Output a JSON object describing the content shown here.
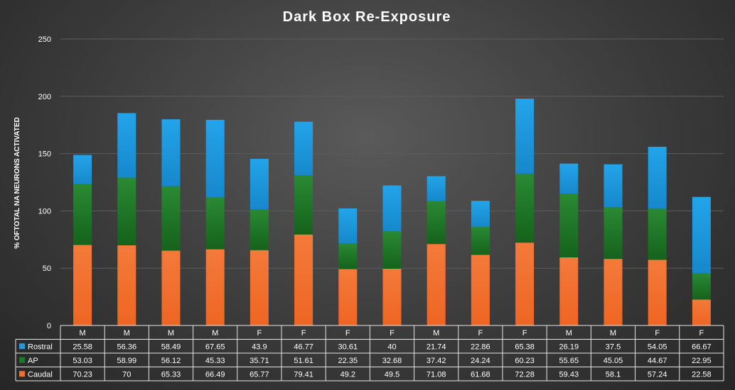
{
  "chart_data": {
    "type": "bar",
    "stacked": true,
    "title": "Dark Box Re-Exposure",
    "ylabel": "% OFTOTAL NA NEURONS ACTIVATED",
    "xlabel": "",
    "ylim": [
      0,
      250
    ],
    "yticks": [
      0,
      50,
      100,
      150,
      200,
      250
    ],
    "grid": true,
    "legend": "data-table-left",
    "categories": [
      "M",
      "M",
      "M",
      "M",
      "F",
      "F",
      "F",
      "F",
      "M",
      "F",
      "F",
      "M",
      "M",
      "F",
      "F"
    ],
    "series": [
      {
        "name": "Caudal",
        "color": "#f26f2e",
        "values": [
          70.23,
          70,
          65.33,
          66.49,
          65.77,
          79.41,
          49.2,
          49.5,
          71.08,
          61.68,
          72.28,
          59.43,
          58.1,
          57.24,
          22.58
        ]
      },
      {
        "name": "AP",
        "color": "#1c7a26",
        "values": [
          53.03,
          58.99,
          56.12,
          45.33,
          35.71,
          51.61,
          22.35,
          32.68,
          37.42,
          24.24,
          60.23,
          55.65,
          45.05,
          44.67,
          22.95
        ]
      },
      {
        "name": "Rostral",
        "color": "#1e9be0",
        "values": [
          25.58,
          56.36,
          58.49,
          67.65,
          43.9,
          46.77,
          30.61,
          40,
          21.74,
          22.86,
          65.38,
          26.19,
          37.5,
          54.05,
          66.67
        ]
      }
    ],
    "table_row_order": [
      "Rostral",
      "AP",
      "Caudal"
    ],
    "table_labels": {
      "Rostral": [
        "25.58",
        "56.36",
        "58.49",
        "67.65",
        "43.9",
        "46.77",
        "30.61",
        "40",
        "21.74",
        "22.86",
        "65.38",
        "26.19",
        "37.5",
        "54.05",
        "66.67"
      ],
      "AP": [
        "53.03",
        "58.99",
        "56.12",
        "45.33",
        "35.71",
        "51.61",
        "22.35",
        "32.68",
        "37.42",
        "24.24",
        "60.23",
        "55.65",
        "45.05",
        "44.67",
        "22.95"
      ],
      "Caudal": [
        "70.23",
        "70",
        "65.33",
        "66.49",
        "65.77",
        "79.41",
        "49.2",
        "49.5",
        "71.08",
        "61.68",
        "72.28",
        "59.43",
        "58.1",
        "57.24",
        "22.58"
      ]
    }
  }
}
